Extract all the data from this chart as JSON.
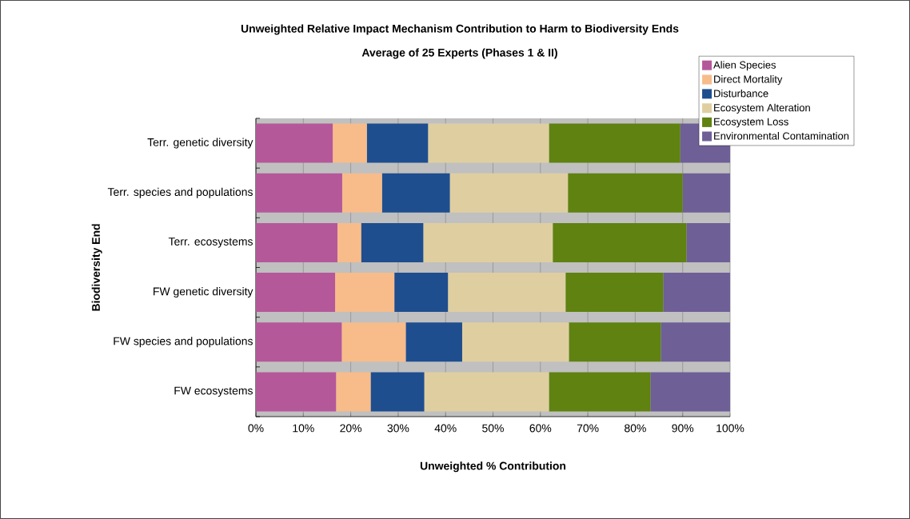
{
  "chart_data": {
    "type": "bar",
    "orientation": "horizontal",
    "stacked": true,
    "title": "Unweighted Relative Impact Mechanism Contribution to Harm to Biodiversity Ends",
    "subtitle": "Average of 25 Experts (Phases 1 & II)",
    "xlabel": "Unweighted % Contribution",
    "ylabel": "Biodiversity End",
    "categories": [
      "Terr. genetic diversity",
      "Terr. species and populations",
      "Terr. ecosystems",
      "FW genetic diversity",
      "FW species and populations",
      "FW ecosystems"
    ],
    "series": [
      {
        "name": "Alien Species",
        "color": "#b5589a",
        "values": [
          16.2,
          18.2,
          17.2,
          16.7,
          18.1,
          16.9
        ]
      },
      {
        "name": "Direct Mortality",
        "color": "#f7bc8a",
        "values": [
          7.2,
          8.4,
          5.0,
          12.5,
          13.5,
          7.3
        ]
      },
      {
        "name": "Disturbance",
        "color": "#1f4e8f",
        "values": [
          12.9,
          14.3,
          13.1,
          11.3,
          11.9,
          11.3
        ]
      },
      {
        "name": "Ecosystem Alteration",
        "color": "#dfcfa0",
        "values": [
          25.5,
          24.9,
          27.3,
          24.8,
          22.5,
          26.3
        ]
      },
      {
        "name": "Ecosystem Loss",
        "color": "#5f8211",
        "values": [
          27.7,
          24.2,
          28.2,
          20.6,
          19.4,
          21.4
        ]
      },
      {
        "name": "Environmental Contamination",
        "color": "#6e5f97",
        "values": [
          10.5,
          10.0,
          9.2,
          14.1,
          14.6,
          16.8
        ]
      }
    ],
    "xlim": [
      0,
      100
    ],
    "xticks": [
      {
        "value": 0,
        "label": "0%"
      },
      {
        "value": 10,
        "label": "10%"
      },
      {
        "value": 20,
        "label": "20%"
      },
      {
        "value": 30,
        "label": "30%"
      },
      {
        "value": 40,
        "label": "40%"
      },
      {
        "value": 50,
        "label": "50%"
      },
      {
        "value": 60,
        "label": "60%"
      },
      {
        "value": 70,
        "label": "70%"
      },
      {
        "value": 80,
        "label": "80%"
      },
      {
        "value": 90,
        "label": "90%"
      },
      {
        "value": 100,
        "label": "100%"
      }
    ],
    "grid": "x",
    "legend": "top right"
  }
}
